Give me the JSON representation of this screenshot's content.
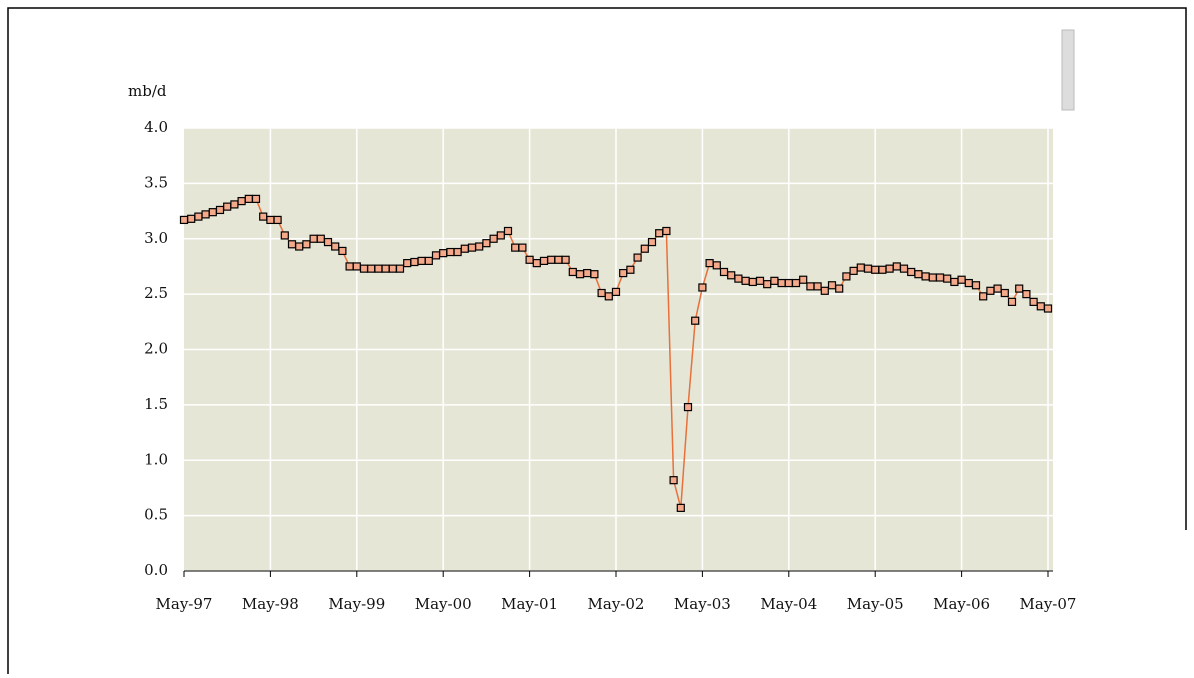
{
  "chart_data": {
    "type": "line",
    "y_label": "mb/d",
    "categories": [
      "May-97",
      null,
      null,
      null,
      null,
      null,
      null,
      null,
      null,
      null,
      null,
      null,
      "May-98",
      null,
      null,
      null,
      null,
      null,
      null,
      null,
      null,
      null,
      null,
      null,
      "May-99",
      null,
      null,
      null,
      null,
      null,
      null,
      null,
      null,
      null,
      null,
      null,
      "May-00",
      null,
      null,
      null,
      null,
      null,
      null,
      null,
      null,
      null,
      null,
      null,
      "May-01",
      null,
      null,
      null,
      null,
      null,
      null,
      null,
      null,
      null,
      null,
      null,
      "May-02",
      null,
      null,
      null,
      null,
      null,
      null,
      null,
      null,
      null,
      null,
      null,
      "May-03",
      null,
      null,
      null,
      null,
      null,
      null,
      null,
      null,
      null,
      null,
      null,
      "May-04",
      null,
      null,
      null,
      null,
      null,
      null,
      null,
      null,
      null,
      null,
      null,
      "May-05",
      null,
      null,
      null,
      null,
      null,
      null,
      null,
      null,
      null,
      null,
      null,
      "May-06",
      null,
      null,
      null,
      null,
      null,
      null,
      null,
      null,
      null,
      null,
      null,
      "May-07"
    ],
    "series": [
      {
        "name": "mb/d",
        "color": "#e8703a",
        "marker_fill": "#f4a98a",
        "values": [
          3.17,
          3.18,
          3.2,
          3.22,
          3.24,
          3.26,
          3.29,
          3.31,
          3.34,
          3.36,
          3.36,
          3.2,
          3.17,
          3.17,
          3.03,
          2.95,
          2.93,
          2.95,
          3.0,
          3.0,
          2.97,
          2.93,
          2.89,
          2.75,
          2.75,
          2.73,
          2.73,
          2.73,
          2.73,
          2.73,
          2.73,
          2.78,
          2.79,
          2.8,
          2.8,
          2.85,
          2.87,
          2.88,
          2.88,
          2.91,
          2.92,
          2.93,
          2.96,
          3.0,
          3.03,
          3.07,
          2.92,
          2.92,
          2.81,
          2.78,
          2.8,
          2.81,
          2.81,
          2.81,
          2.7,
          2.68,
          2.69,
          2.68,
          2.51,
          2.48,
          2.52,
          2.69,
          2.72,
          2.83,
          2.91,
          2.97,
          3.05,
          3.07,
          0.82,
          0.57,
          1.48,
          2.26,
          2.56,
          2.78,
          2.76,
          2.7,
          2.67,
          2.64,
          2.62,
          2.61,
          2.62,
          2.59,
          2.62,
          2.6,
          2.6,
          2.6,
          2.63,
          2.57,
          2.57,
          2.53,
          2.58,
          2.55,
          2.66,
          2.71,
          2.74,
          2.73,
          2.72,
          2.72,
          2.73,
          2.75,
          2.73,
          2.7,
          2.68,
          2.66,
          2.65,
          2.65,
          2.64,
          2.61,
          2.63,
          2.6,
          2.58,
          2.48,
          2.53,
          2.55,
          2.51,
          2.43,
          2.55,
          2.5,
          2.43,
          2.39,
          2.37
        ]
      }
    ],
    "ylim": [
      0,
      4
    ],
    "yticks": [
      {
        "value": 0,
        "label": "0.0"
      },
      0.5,
      {
        "value": 1,
        "label": "1.0"
      },
      1.5,
      {
        "value": 2,
        "label": "2.0"
      },
      2.5,
      {
        "value": 3,
        "label": "3.0"
      },
      3.5,
      {
        "value": 4,
        "label": "4.0"
      }
    ],
    "grid": true,
    "background": "#e6e6d7"
  }
}
